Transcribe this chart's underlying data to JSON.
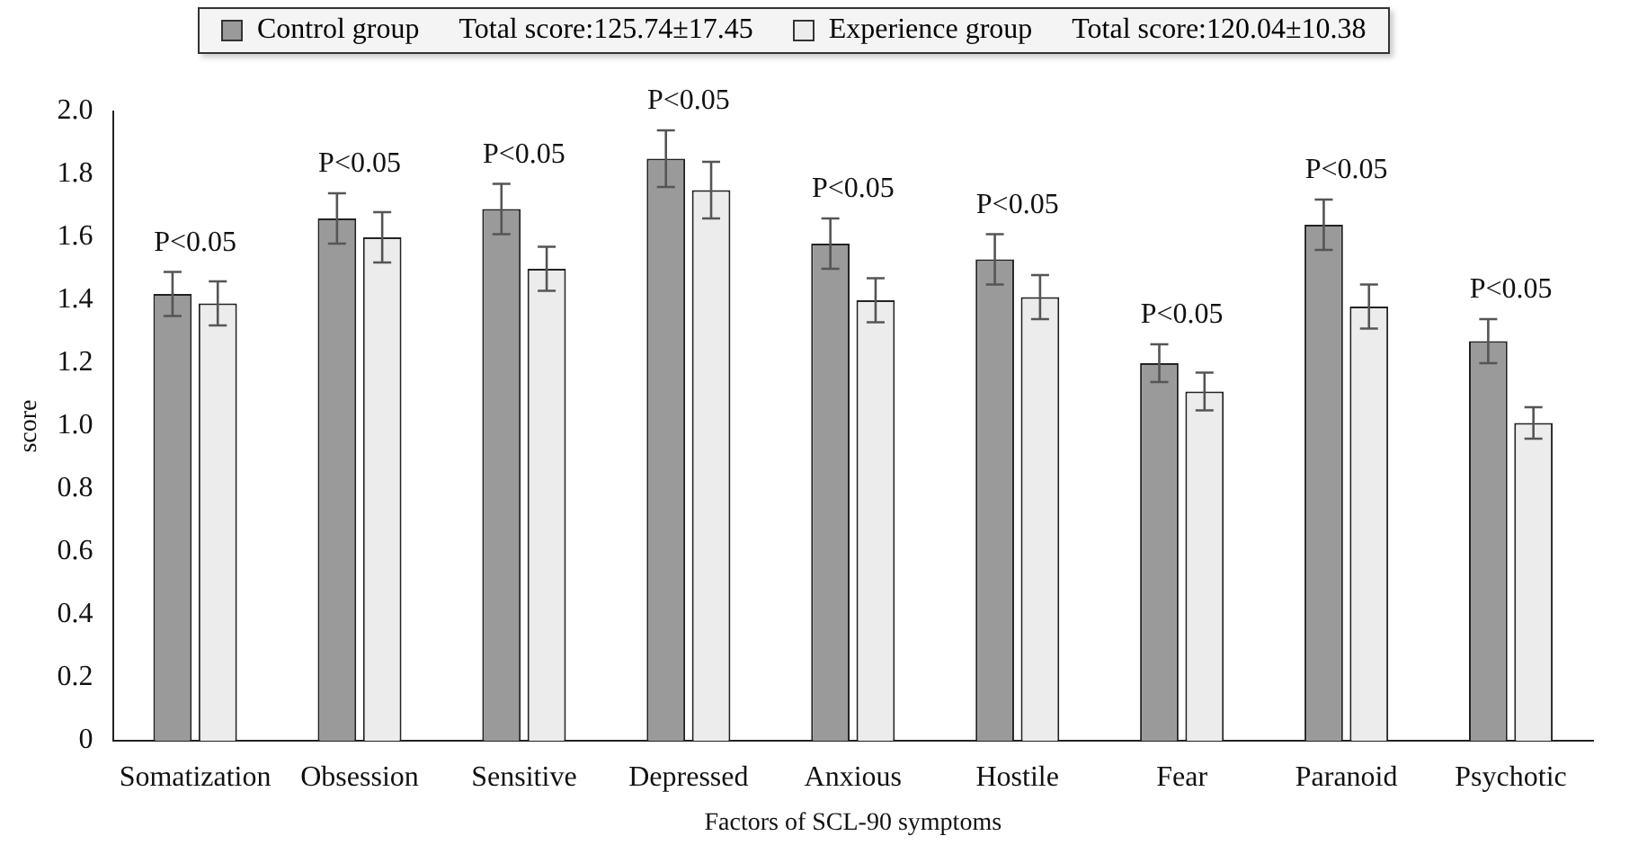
{
  "chart_data": {
    "type": "bar",
    "xlabel": "Factors of SCL-90 symptoms",
    "ylabel": "score",
    "categories": [
      "Somatization",
      "Obsession",
      "Sensitive",
      "Depressed",
      "Anxious",
      "Hostile",
      "Fear",
      "Paranoid",
      "Psychotic"
    ],
    "series": [
      {
        "name": "Control group",
        "color": "#9a9a9a",
        "values": [
          1.42,
          1.66,
          1.69,
          1.85,
          1.58,
          1.53,
          1.2,
          1.64,
          1.27
        ],
        "errors": [
          0.07,
          0.08,
          0.08,
          0.09,
          0.08,
          0.08,
          0.06,
          0.08,
          0.07
        ]
      },
      {
        "name": "Experience group",
        "color": "#ececec",
        "values": [
          1.39,
          1.6,
          1.5,
          1.75,
          1.4,
          1.41,
          1.11,
          1.38,
          1.01
        ],
        "errors": [
          0.07,
          0.08,
          0.07,
          0.09,
          0.07,
          0.07,
          0.06,
          0.07,
          0.05
        ]
      }
    ],
    "ylim": [
      0,
      2.0
    ],
    "yticks": [
      {
        "value": 0,
        "label": "0"
      },
      0.2,
      0.4,
      0.6,
      0.8,
      {
        "value": 1,
        "label": "1.0"
      },
      1.2,
      1.4,
      1.6,
      1.8,
      {
        "value": 2,
        "label": "2.0"
      }
    ],
    "grid": false,
    "legend": "top",
    "annotations": [
      "Total score:125.74±17.45",
      "Total score:120.04±10.38",
      "P<0.05",
      "P<0.05",
      "P<0.05",
      "P<0.05",
      "P<0.05",
      "P<0.05",
      "P<0.05",
      "P<0.05",
      "P<0.05"
    ]
  }
}
